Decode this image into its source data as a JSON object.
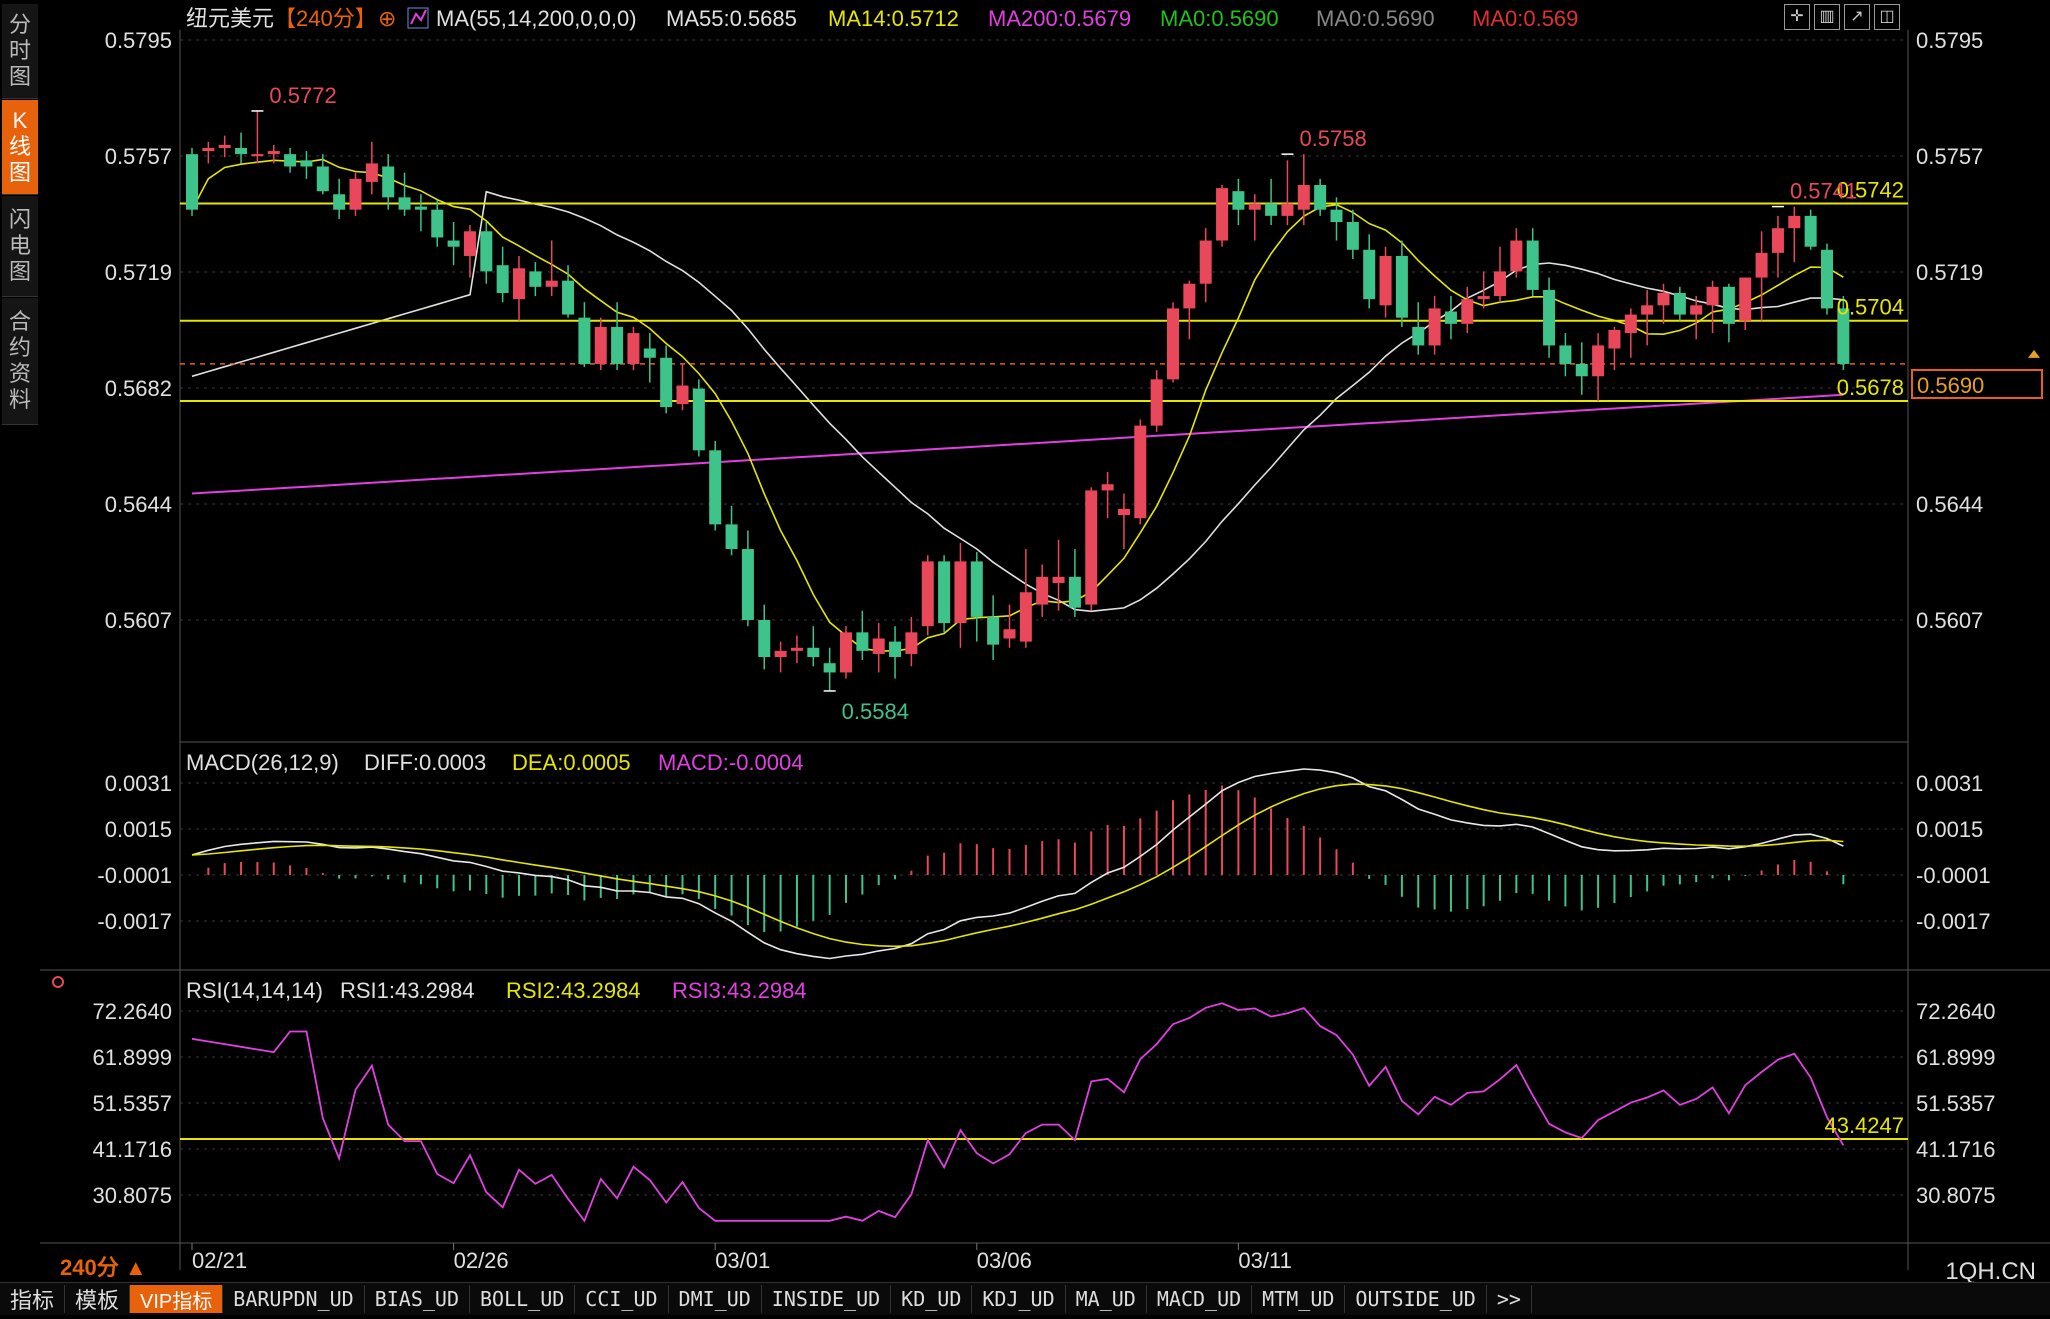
{
  "instrument": "纽元美元",
  "period_tag": "【240分】",
  "ma_legend": {
    "title": "MA(55,14,200,0,0,0)",
    "items": [
      {
        "text": "MA55:0.5685",
        "color": "#e0e0e0"
      },
      {
        "text": "MA14:0.5712",
        "color": "#e6e600"
      },
      {
        "text": "MA200:0.5679",
        "color": "#e040e0"
      },
      {
        "text": "MA0:0.5690",
        "color": "#20c020"
      },
      {
        "text": "MA0:0.5690",
        "color": "#888888"
      },
      {
        "text": "MA0:0.569",
        "color": "#e03030"
      }
    ]
  },
  "side_tabs": [
    {
      "label": "分时图",
      "active": false
    },
    {
      "label": "K线图",
      "active": true
    },
    {
      "label": "闪电图",
      "active": false
    },
    {
      "label": "合约资料",
      "active": false
    }
  ],
  "price_axis": {
    "ticks": [
      "0.5795",
      "0.5757",
      "0.5719",
      "0.5682",
      "0.5644",
      "0.5607"
    ]
  },
  "annotations": {
    "high1": "0.5772",
    "high2": "0.5758",
    "high3": "0.5741",
    "low1": "0.5584"
  },
  "hlines": {
    "l1": "0.5742",
    "l2": "0.5704",
    "l3": "0.5678"
  },
  "current_price": "0.5690",
  "macd": {
    "title": "MACD(26,12,9)",
    "diff": "DIFF:0.0003",
    "dea": "DEA:0.0005",
    "macd": "MACD:-0.0004",
    "ticks": [
      "0.0031",
      "0.0015",
      "-0.0001",
      "-0.0017"
    ]
  },
  "rsi": {
    "title": "RSI(14,14,14)",
    "rsi1": "RSI1:43.2984",
    "rsi2": "RSI2:43.2984",
    "rsi3": "RSI3:43.2984",
    "ticks": [
      "72.2640",
      "61.8999",
      "51.5357",
      "41.1716",
      "30.8075"
    ],
    "hline": "43.4247"
  },
  "dates": [
    "02/21",
    "02/26",
    "03/01",
    "03/06",
    "03/11"
  ],
  "period_label": "240分 ▲",
  "brand": "1QH.CN",
  "bottom_tabs": [
    "指标",
    "模板",
    "VIP指标",
    "BARUPDN_UD",
    "BIAS_UD",
    "BOLL_UD",
    "CCI_UD",
    "DMI_UD",
    "INSIDE_UD",
    "KD_UD",
    "KDJ_UD",
    "MA_UD",
    "MACD_UD",
    "MTM_UD",
    "OUTSIDE_UD",
    ">>"
  ],
  "colors": {
    "up": "#e8485a",
    "down": "#3ec38a",
    "ma55": "#e0e0e0",
    "ma14": "#e6e600",
    "ma200": "#e040e0",
    "hline": "#e6e600",
    "accent": "#e8620c"
  },
  "chart_data": {
    "type": "candlestick",
    "ylim": [
      0.557,
      0.58
    ],
    "candles": [
      [
        0.5758,
        0.576,
        0.5738,
        0.574
      ],
      [
        0.5759,
        0.5762,
        0.5755,
        0.576
      ],
      [
        0.576,
        0.5764,
        0.5757,
        0.5761
      ],
      [
        0.576,
        0.5765,
        0.5755,
        0.5758
      ],
      [
        0.5758,
        0.5772,
        0.5755,
        0.5758
      ],
      [
        0.5758,
        0.5761,
        0.5755,
        0.5759
      ],
      [
        0.5758,
        0.576,
        0.5752,
        0.5754
      ],
      [
        0.5756,
        0.5759,
        0.575,
        0.5754
      ],
      [
        0.5754,
        0.5758,
        0.5745,
        0.5746
      ],
      [
        0.5745,
        0.575,
        0.5737,
        0.574
      ],
      [
        0.574,
        0.5752,
        0.5738,
        0.575
      ],
      [
        0.5749,
        0.5762,
        0.5745,
        0.5755
      ],
      [
        0.5754,
        0.5758,
        0.574,
        0.5744
      ],
      [
        0.5744,
        0.5752,
        0.5738,
        0.574
      ],
      [
        0.5741,
        0.5745,
        0.5733,
        0.574
      ],
      [
        0.574,
        0.5743,
        0.5728,
        0.5731
      ],
      [
        0.573,
        0.5736,
        0.5722,
        0.5728
      ],
      [
        0.5725,
        0.5735,
        0.5718,
        0.5733
      ],
      [
        0.5733,
        0.5736,
        0.5716,
        0.572
      ],
      [
        0.5722,
        0.5728,
        0.571,
        0.5713
      ],
      [
        0.5711,
        0.5725,
        0.5704,
        0.5721
      ],
      [
        0.572,
        0.5723,
        0.5712,
        0.5715
      ],
      [
        0.5715,
        0.573,
        0.5712,
        0.5717
      ],
      [
        0.5717,
        0.5722,
        0.5705,
        0.5706
      ],
      [
        0.5705,
        0.571,
        0.5689,
        0.569
      ],
      [
        0.569,
        0.5705,
        0.5688,
        0.5702
      ],
      [
        0.5702,
        0.571,
        0.5688,
        0.569
      ],
      [
        0.569,
        0.5702,
        0.5688,
        0.57
      ],
      [
        0.5695,
        0.57,
        0.5684,
        0.5692
      ],
      [
        0.5692,
        0.5696,
        0.5674,
        0.5676
      ],
      [
        0.5677,
        0.569,
        0.5675,
        0.5683
      ],
      [
        0.5682,
        0.5685,
        0.566,
        0.5662
      ],
      [
        0.5662,
        0.5665,
        0.5636,
        0.5638
      ],
      [
        0.5638,
        0.5644,
        0.5628,
        0.563
      ],
      [
        0.563,
        0.5636,
        0.5605,
        0.5607
      ],
      [
        0.5607,
        0.5612,
        0.5591,
        0.5595
      ],
      [
        0.5595,
        0.56,
        0.559,
        0.5597
      ],
      [
        0.5597,
        0.5602,
        0.5593,
        0.5598
      ],
      [
        0.5598,
        0.5605,
        0.5592,
        0.5595
      ],
      [
        0.5593,
        0.5598,
        0.5584,
        0.559
      ],
      [
        0.559,
        0.5605,
        0.5588,
        0.5603
      ],
      [
        0.5603,
        0.561,
        0.5594,
        0.5597
      ],
      [
        0.5596,
        0.5606,
        0.559,
        0.5601
      ],
      [
        0.56,
        0.5605,
        0.5588,
        0.5595
      ],
      [
        0.5596,
        0.5608,
        0.5592,
        0.5603
      ],
      [
        0.5605,
        0.5628,
        0.5602,
        0.5626
      ],
      [
        0.5626,
        0.5628,
        0.5603,
        0.5606
      ],
      [
        0.5606,
        0.5632,
        0.5598,
        0.5626
      ],
      [
        0.5626,
        0.5629,
        0.56,
        0.5608
      ],
      [
        0.5608,
        0.5615,
        0.5594,
        0.5599
      ],
      [
        0.5601,
        0.5612,
        0.5598,
        0.5604
      ],
      [
        0.56,
        0.563,
        0.5598,
        0.5616
      ],
      [
        0.5612,
        0.5625,
        0.5608,
        0.5621
      ],
      [
        0.5619,
        0.5633,
        0.561,
        0.5621
      ],
      [
        0.5621,
        0.563,
        0.5608,
        0.5611
      ],
      [
        0.5612,
        0.565,
        0.561,
        0.5649
      ],
      [
        0.5649,
        0.5655,
        0.564,
        0.5651
      ],
      [
        0.5641,
        0.5648,
        0.563,
        0.5643
      ],
      [
        0.564,
        0.5672,
        0.5638,
        0.567
      ],
      [
        0.567,
        0.5688,
        0.5668,
        0.5685
      ],
      [
        0.5685,
        0.571,
        0.5684,
        0.5708
      ],
      [
        0.5708,
        0.5717,
        0.5698,
        0.5716
      ],
      [
        0.5716,
        0.5734,
        0.571,
        0.573
      ],
      [
        0.573,
        0.5748,
        0.5728,
        0.5747
      ],
      [
        0.5746,
        0.575,
        0.5735,
        0.574
      ],
      [
        0.574,
        0.5745,
        0.573,
        0.5742
      ],
      [
        0.5742,
        0.575,
        0.5735,
        0.5738
      ],
      [
        0.5738,
        0.5756,
        0.5735,
        0.5742
      ],
      [
        0.574,
        0.5758,
        0.5735,
        0.5748
      ],
      [
        0.5748,
        0.575,
        0.5738,
        0.574
      ],
      [
        0.574,
        0.5744,
        0.573,
        0.5736
      ],
      [
        0.5736,
        0.574,
        0.5724,
        0.5727
      ],
      [
        0.5727,
        0.5732,
        0.5708,
        0.5711
      ],
      [
        0.5709,
        0.5728,
        0.5705,
        0.5725
      ],
      [
        0.5725,
        0.573,
        0.5702,
        0.5705
      ],
      [
        0.5702,
        0.571,
        0.5693,
        0.5696
      ],
      [
        0.5696,
        0.5712,
        0.5693,
        0.5708
      ],
      [
        0.5707,
        0.5712,
        0.5698,
        0.5703
      ],
      [
        0.5703,
        0.5715,
        0.57,
        0.5711
      ],
      [
        0.5711,
        0.572,
        0.5708,
        0.5712
      ],
      [
        0.5712,
        0.5728,
        0.571,
        0.572
      ],
      [
        0.572,
        0.5734,
        0.5718,
        0.573
      ],
      [
        0.573,
        0.5734,
        0.5712,
        0.5714
      ],
      [
        0.5714,
        0.5718,
        0.5692,
        0.5696
      ],
      [
        0.5696,
        0.57,
        0.5686,
        0.569
      ],
      [
        0.569,
        0.5697,
        0.568,
        0.5686
      ],
      [
        0.5686,
        0.57,
        0.5678,
        0.5696
      ],
      [
        0.5695,
        0.5702,
        0.5688,
        0.5701
      ],
      [
        0.57,
        0.5708,
        0.5692,
        0.5706
      ],
      [
        0.5706,
        0.5714,
        0.5696,
        0.5709
      ],
      [
        0.5709,
        0.5716,
        0.5703,
        0.5713
      ],
      [
        0.5713,
        0.5715,
        0.5704,
        0.5706
      ],
      [
        0.5706,
        0.5712,
        0.5698,
        0.5709
      ],
      [
        0.5709,
        0.5717,
        0.57,
        0.5715
      ],
      [
        0.5715,
        0.5716,
        0.5697,
        0.5703
      ],
      [
        0.5704,
        0.5718,
        0.5701,
        0.5718
      ],
      [
        0.5718,
        0.5733,
        0.5704,
        0.5726
      ],
      [
        0.5726,
        0.5738,
        0.5718,
        0.5734
      ],
      [
        0.5734,
        0.5741,
        0.5723,
        0.5738
      ],
      [
        0.5738,
        0.574,
        0.5727,
        0.5728
      ],
      [
        0.5727,
        0.5729,
        0.5706,
        0.5708
      ],
      [
        0.5708,
        0.5712,
        0.5688,
        0.569
      ]
    ]
  }
}
